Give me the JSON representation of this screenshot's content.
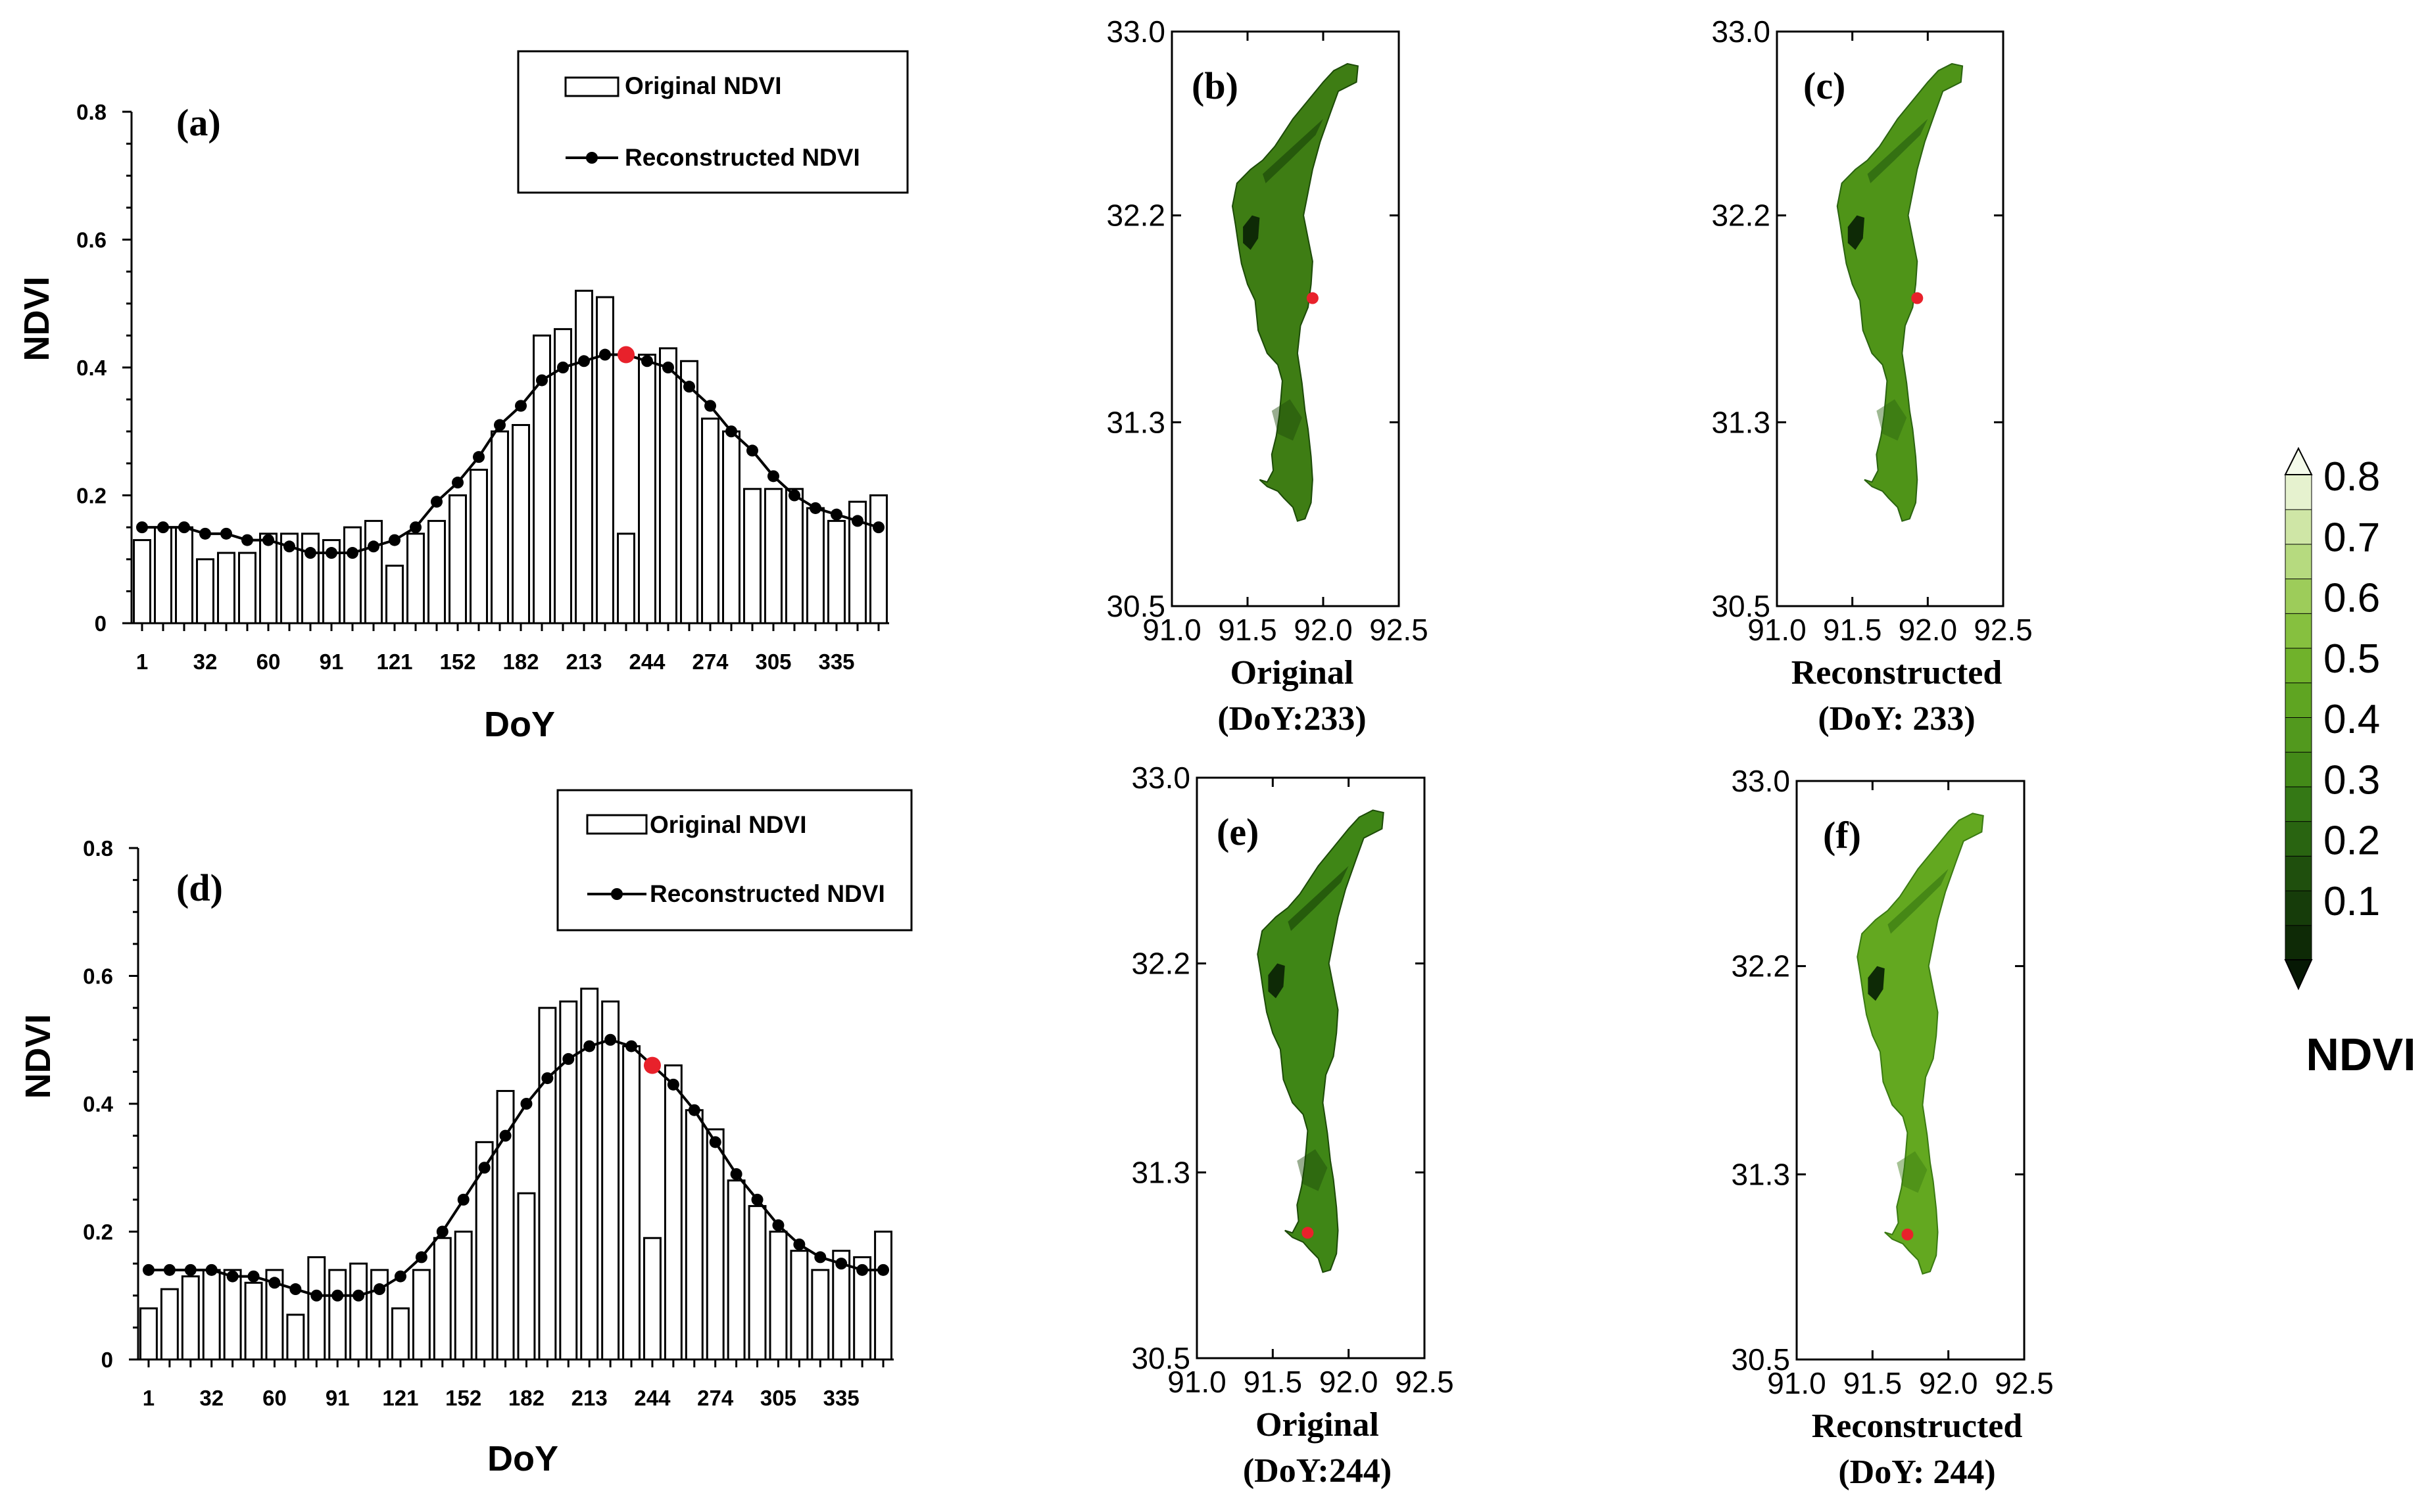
{
  "chart_data": [
    {
      "type": "bar+line",
      "panel_label": "(a)",
      "xlabel": "DoY",
      "ylabel": "NDVI",
      "ylim": [
        0,
        0.8
      ],
      "yticks": [
        "0",
        "0.2",
        "0.4",
        "0.6",
        "0.8"
      ],
      "xticks": [
        "1",
        "32",
        "60",
        "91",
        "121",
        "152",
        "182",
        "213",
        "244",
        "274",
        "305",
        "335"
      ],
      "legend": {
        "bar": "Original NDVI",
        "line": "Reconstructed NDVI"
      },
      "original": [
        0.13,
        0.15,
        0.15,
        0.1,
        0.11,
        0.11,
        0.14,
        0.14,
        0.14,
        0.13,
        0.15,
        0.16,
        0.09,
        0.14,
        0.16,
        0.2,
        0.24,
        0.3,
        0.31,
        0.45,
        0.46,
        0.52,
        0.51,
        0.14,
        0.42,
        0.43,
        0.41,
        0.32,
        0.3,
        0.21,
        0.21,
        0.21,
        0.18,
        0.16,
        0.19,
        0.2
      ],
      "reconstructed": [
        0.15,
        0.15,
        0.15,
        0.14,
        0.14,
        0.13,
        0.13,
        0.12,
        0.11,
        0.11,
        0.11,
        0.12,
        0.13,
        0.15,
        0.19,
        0.22,
        0.26,
        0.31,
        0.34,
        0.38,
        0.4,
        0.41,
        0.42,
        0.42,
        0.41,
        0.4,
        0.37,
        0.34,
        0.3,
        0.27,
        0.23,
        0.2,
        0.18,
        0.17,
        0.16,
        0.15
      ],
      "highlight_index": 23
    },
    {
      "type": "bar+line",
      "panel_label": "(d)",
      "xlabel": "DoY",
      "ylabel": "NDVI",
      "ylim": [
        0,
        0.8
      ],
      "yticks": [
        "0",
        "0.2",
        "0.4",
        "0.6",
        "0.8"
      ],
      "xticks": [
        "1",
        "32",
        "60",
        "91",
        "121",
        "152",
        "182",
        "213",
        "244",
        "274",
        "305",
        "335"
      ],
      "legend": {
        "bar": "Original NDVI",
        "line": "Reconstructed NDVI"
      },
      "original": [
        0.08,
        0.11,
        0.13,
        0.14,
        0.14,
        0.12,
        0.14,
        0.07,
        0.16,
        0.14,
        0.15,
        0.14,
        0.08,
        0.14,
        0.19,
        0.2,
        0.34,
        0.42,
        0.26,
        0.55,
        0.56,
        0.58,
        0.56,
        0.49,
        0.19,
        0.46,
        0.39,
        0.36,
        0.28,
        0.24,
        0.2,
        0.17,
        0.14,
        0.17,
        0.16,
        0.2
      ],
      "reconstructed": [
        0.14,
        0.14,
        0.14,
        0.14,
        0.13,
        0.13,
        0.12,
        0.11,
        0.1,
        0.1,
        0.1,
        0.11,
        0.13,
        0.16,
        0.2,
        0.25,
        0.3,
        0.35,
        0.4,
        0.44,
        0.47,
        0.49,
        0.5,
        0.49,
        0.46,
        0.43,
        0.39,
        0.34,
        0.29,
        0.25,
        0.21,
        0.18,
        0.16,
        0.15,
        0.14,
        0.14
      ],
      "highlight_index": 24
    }
  ],
  "maps": [
    {
      "label": "(b)",
      "caption1": "Original",
      "caption2": "(DoY:233)",
      "marker": [
        91.93,
        31.84
      ],
      "tone": "#3e7d14",
      "subtone": "#1c4a08"
    },
    {
      "label": "(c)",
      "caption1": "Reconstructed",
      "caption2": "(DoY: 233)",
      "marker": [
        91.93,
        31.84
      ],
      "tone": "#4f9418",
      "subtone": "#2a6310"
    },
    {
      "label": "(e)",
      "caption1": "Original",
      "caption2": "(DoY:244)",
      "marker": [
        91.73,
        31.04
      ],
      "tone": "#3f8616",
      "subtone": "#1c4a08"
    },
    {
      "label": "(f)",
      "caption1": "Reconstructed",
      "caption2": "(DoY: 244)",
      "marker": [
        91.73,
        31.04
      ],
      "tone": "#63a820",
      "subtone": "#3a7a12"
    }
  ],
  "map_axes": {
    "xticks": [
      91.0,
      91.5,
      92.0,
      92.5
    ],
    "yticks": [
      30.5,
      31.3,
      32.2,
      33.0
    ],
    "xtick_labels": [
      "91.0",
      "91.5",
      "92.0",
      "92.5"
    ],
    "ytick_labels": [
      "30.5",
      "31.3",
      "32.2",
      "33.0"
    ]
  },
  "colorbar": {
    "title": "NDVI",
    "labels": [
      "0.8",
      "0.7",
      "0.6",
      "0.5",
      "0.4",
      "0.3",
      "0.2",
      "0.1"
    ],
    "colors": [
      "#0e2a06",
      "#163c0a",
      "#1f4f0d",
      "#296411",
      "#347815",
      "#438a18",
      "#52991e",
      "#5fa522",
      "#70b22b",
      "#86c03f",
      "#9dcc5a",
      "#b6da7f",
      "#cfe6a6",
      "#e6f2cf"
    ]
  }
}
